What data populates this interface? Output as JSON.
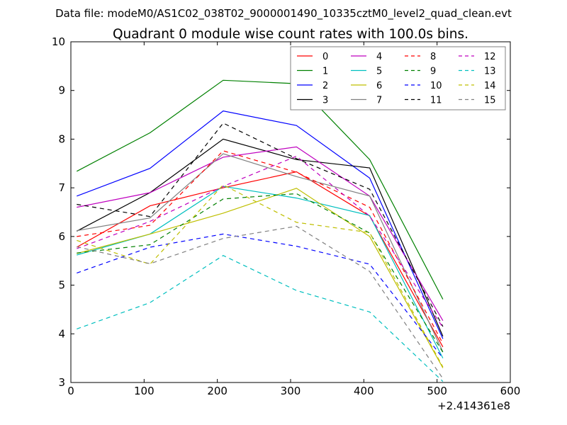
{
  "suptitle": "Data file: modeM0/AS1C02_038T02_9000001490_10335cztM0_level2_quad_clean.evt",
  "chart_data": {
    "type": "line",
    "title": "Quadrant 0 module wise count rates with 100.0s bins.",
    "xlabel": "",
    "ylabel": "",
    "x_offset_label": "+2.414361e8",
    "xlim": [
      0,
      600
    ],
    "ylim": [
      3,
      10
    ],
    "xticks": [
      "0",
      "100",
      "200",
      "300",
      "400",
      "500",
      "600"
    ],
    "yticks": [
      "3",
      "4",
      "5",
      "6",
      "7",
      "8",
      "9",
      "10"
    ],
    "grid": false,
    "legend_position": "top-right",
    "x": [
      8,
      108,
      208,
      308,
      408,
      508
    ],
    "series": [
      {
        "name": "0",
        "color": "#ff0000",
        "dash": false,
        "values": [
          5.78,
          6.63,
          7.0,
          7.33,
          6.42,
          3.73
        ]
      },
      {
        "name": "1",
        "color": "#008000",
        "dash": false,
        "values": [
          7.34,
          8.13,
          9.21,
          9.14,
          7.58,
          4.71
        ]
      },
      {
        "name": "2",
        "color": "#0000ff",
        "dash": false,
        "values": [
          6.83,
          7.4,
          8.58,
          8.28,
          7.2,
          3.9
        ]
      },
      {
        "name": "3",
        "color": "#000000",
        "dash": false,
        "values": [
          6.11,
          6.9,
          8.0,
          7.58,
          7.41,
          3.95
        ]
      },
      {
        "name": "4",
        "color": "#bf00bf",
        "dash": false,
        "values": [
          6.6,
          6.9,
          7.63,
          7.84,
          6.83,
          4.27
        ]
      },
      {
        "name": "5",
        "color": "#00bfbf",
        "dash": false,
        "values": [
          5.62,
          6.05,
          7.03,
          6.79,
          6.43,
          3.5
        ]
      },
      {
        "name": "6",
        "color": "#bfbf00",
        "dash": false,
        "values": [
          5.65,
          6.05,
          6.48,
          6.99,
          6.0,
          3.3
        ]
      },
      {
        "name": "7",
        "color": "#808080",
        "dash": false,
        "values": [
          6.12,
          6.38,
          7.7,
          7.23,
          6.83,
          3.63
        ]
      },
      {
        "name": "8",
        "color": "#ff0000",
        "dash": true,
        "values": [
          6.0,
          6.23,
          7.76,
          7.32,
          6.6,
          3.8
        ]
      },
      {
        "name": "9",
        "color": "#008000",
        "dash": true,
        "values": [
          5.66,
          5.83,
          6.77,
          6.88,
          6.07,
          3.62
        ]
      },
      {
        "name": "10",
        "color": "#0000ff",
        "dash": true,
        "values": [
          5.25,
          5.78,
          6.05,
          5.8,
          5.43,
          3.5
        ]
      },
      {
        "name": "11",
        "color": "#000000",
        "dash": true,
        "values": [
          6.66,
          6.41,
          8.33,
          7.6,
          6.97,
          4.15
        ]
      },
      {
        "name": "12",
        "color": "#bf00bf",
        "dash": true,
        "values": [
          5.75,
          6.31,
          7.03,
          7.65,
          6.42,
          4.13
        ]
      },
      {
        "name": "13",
        "color": "#00bfbf",
        "dash": true,
        "values": [
          4.1,
          4.64,
          5.61,
          4.89,
          4.45,
          3.02
        ]
      },
      {
        "name": "14",
        "color": "#bfbf00",
        "dash": true,
        "values": [
          5.92,
          5.43,
          7.06,
          6.29,
          6.08,
          3.32
        ]
      },
      {
        "name": "15",
        "color": "#808080",
        "dash": true,
        "values": [
          5.79,
          5.44,
          5.96,
          6.21,
          5.28,
          3.08
        ]
      }
    ]
  }
}
